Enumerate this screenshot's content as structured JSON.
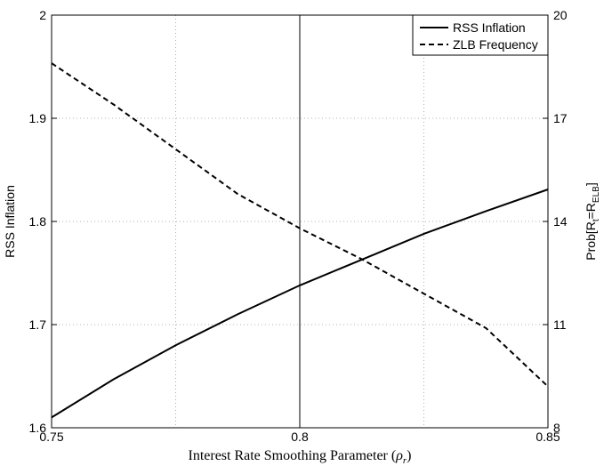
{
  "chart_data": {
    "type": "line",
    "xlabel": "Interest Rate Smoothing Parameter (ρr)",
    "ylabel_left": "RSS Inflation",
    "ylabel_right": "Prob[Rt=RELB]",
    "xlim": [
      0.75,
      0.85
    ],
    "ylim_left": [
      1.6,
      2.0
    ],
    "ylim_right": [
      8,
      20
    ],
    "xticks": [
      "0.75",
      "0.8",
      "0.85"
    ],
    "yticks_left": [
      "1.6",
      "1.7",
      "1.8",
      "1.9",
      "2"
    ],
    "yticks_right": [
      "8",
      "11",
      "14",
      "17",
      "20"
    ],
    "grid": true,
    "legend_position": "top-right",
    "vline_x": 0.8,
    "x": [
      0.75,
      0.7625,
      0.775,
      0.7875,
      0.8,
      0.8125,
      0.825,
      0.8375,
      0.85
    ],
    "series": [
      {
        "name": "RSS Inflation",
        "axis": "left",
        "style": "solid",
        "values": [
          1.61,
          1.647,
          1.68,
          1.71,
          1.738,
          1.763,
          1.788,
          1.81,
          1.831
        ]
      },
      {
        "name": "ZLB Frequency",
        "axis": "right",
        "style": "dashed",
        "values": [
          18.6,
          17.4,
          16.1,
          14.8,
          13.8,
          12.9,
          11.9,
          10.9,
          9.2
        ]
      }
    ]
  }
}
